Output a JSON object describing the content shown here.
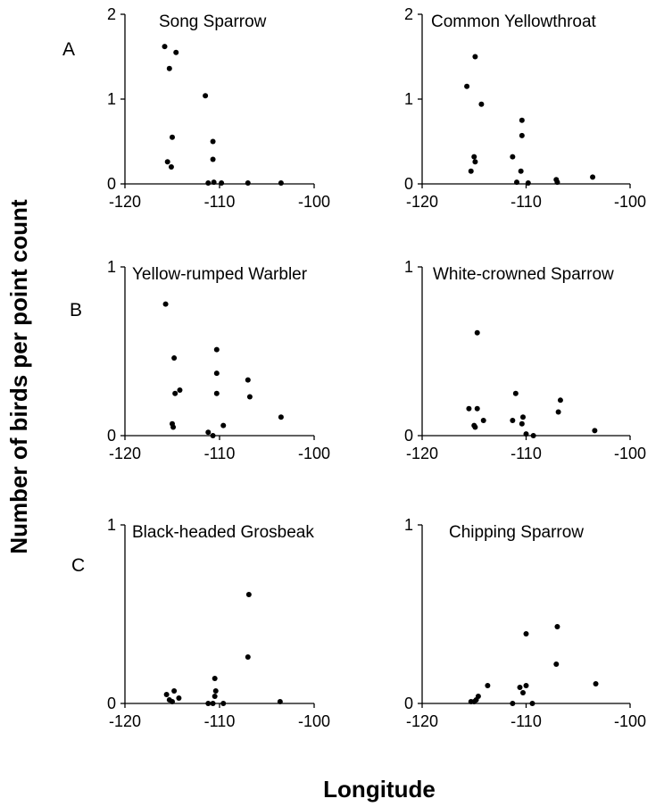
{
  "figure": {
    "ylabel": "Number of birds per point count",
    "xlabel": "Longitude",
    "rows": [
      "A",
      "B",
      "C"
    ]
  },
  "chart_data": [
    {
      "type": "scatter",
      "row": "A",
      "title": "Song Sparrow",
      "xlim": [
        -120,
        -100
      ],
      "ylim": [
        0,
        2
      ],
      "xticks": [
        -120,
        -110,
        -100
      ],
      "yticks": [
        0,
        1,
        2
      ],
      "points": [
        {
          "x": -115.8,
          "y": 1.62
        },
        {
          "x": -114.6,
          "y": 1.55
        },
        {
          "x": -115.3,
          "y": 1.36
        },
        {
          "x": -111.5,
          "y": 1.04
        },
        {
          "x": -115.0,
          "y": 0.55
        },
        {
          "x": -110.7,
          "y": 0.5
        },
        {
          "x": -110.7,
          "y": 0.29
        },
        {
          "x": -115.5,
          "y": 0.26
        },
        {
          "x": -115.1,
          "y": 0.2
        },
        {
          "x": -111.2,
          "y": 0.01
        },
        {
          "x": -110.6,
          "y": 0.02
        },
        {
          "x": -109.8,
          "y": 0.01
        },
        {
          "x": -107.0,
          "y": 0.01
        },
        {
          "x": -103.5,
          "y": 0.01
        }
      ]
    },
    {
      "type": "scatter",
      "row": "A",
      "title": "Common Yellowthroat",
      "xlim": [
        -120,
        -100
      ],
      "ylim": [
        0,
        2
      ],
      "xticks": [
        -120,
        -110,
        -100
      ],
      "yticks": [
        0,
        1,
        2
      ],
      "points": [
        {
          "x": -114.9,
          "y": 1.5
        },
        {
          "x": -115.7,
          "y": 1.15
        },
        {
          "x": -114.3,
          "y": 0.94
        },
        {
          "x": -110.4,
          "y": 0.75
        },
        {
          "x": -110.4,
          "y": 0.57
        },
        {
          "x": -115.0,
          "y": 0.32
        },
        {
          "x": -111.3,
          "y": 0.32
        },
        {
          "x": -114.9,
          "y": 0.26
        },
        {
          "x": -115.3,
          "y": 0.15
        },
        {
          "x": -110.5,
          "y": 0.15
        },
        {
          "x": -110.9,
          "y": 0.02
        },
        {
          "x": -109.8,
          "y": 0.01
        },
        {
          "x": -107.1,
          "y": 0.05
        },
        {
          "x": -107.0,
          "y": 0.02
        },
        {
          "x": -103.6,
          "y": 0.08
        }
      ]
    },
    {
      "type": "scatter",
      "row": "B",
      "title": "Yellow-rumped Warbler",
      "xlim": [
        -120,
        -100
      ],
      "ylim": [
        0,
        1
      ],
      "xticks": [
        -120,
        -110,
        -100
      ],
      "yticks": [
        0,
        1
      ],
      "points": [
        {
          "x": -115.7,
          "y": 0.78
        },
        {
          "x": -110.3,
          "y": 0.51
        },
        {
          "x": -114.8,
          "y": 0.46
        },
        {
          "x": -110.3,
          "y": 0.37
        },
        {
          "x": -107.0,
          "y": 0.33
        },
        {
          "x": -114.2,
          "y": 0.27
        },
        {
          "x": -114.7,
          "y": 0.25
        },
        {
          "x": -110.3,
          "y": 0.25
        },
        {
          "x": -106.8,
          "y": 0.23
        },
        {
          "x": -103.5,
          "y": 0.11
        },
        {
          "x": -115.0,
          "y": 0.07
        },
        {
          "x": -114.9,
          "y": 0.05
        },
        {
          "x": -109.6,
          "y": 0.06
        },
        {
          "x": -111.2,
          "y": 0.02
        },
        {
          "x": -110.7,
          "y": 0.0
        }
      ]
    },
    {
      "type": "scatter",
      "row": "B",
      "title": "White-crowned Sparrow",
      "xlim": [
        -120,
        -100
      ],
      "ylim": [
        0,
        1
      ],
      "xticks": [
        -120,
        -110,
        -100
      ],
      "yticks": [
        0,
        1
      ],
      "points": [
        {
          "x": -114.7,
          "y": 0.61
        },
        {
          "x": -111.0,
          "y": 0.25
        },
        {
          "x": -106.7,
          "y": 0.21
        },
        {
          "x": -115.5,
          "y": 0.16
        },
        {
          "x": -114.7,
          "y": 0.16
        },
        {
          "x": -106.9,
          "y": 0.14
        },
        {
          "x": -110.3,
          "y": 0.11
        },
        {
          "x": -114.1,
          "y": 0.09
        },
        {
          "x": -111.3,
          "y": 0.09
        },
        {
          "x": -115.0,
          "y": 0.06
        },
        {
          "x": -114.9,
          "y": 0.05
        },
        {
          "x": -110.4,
          "y": 0.07
        },
        {
          "x": -103.4,
          "y": 0.03
        },
        {
          "x": -110.0,
          "y": 0.01
        },
        {
          "x": -109.3,
          "y": 0.0
        }
      ]
    },
    {
      "type": "scatter",
      "row": "C",
      "title": "Black-headed Grosbeak",
      "xlim": [
        -120,
        -100
      ],
      "ylim": [
        0,
        1
      ],
      "xticks": [
        -120,
        -110,
        -100
      ],
      "yticks": [
        0,
        1
      ],
      "points": [
        {
          "x": -106.9,
          "y": 0.61
        },
        {
          "x": -107.0,
          "y": 0.26
        },
        {
          "x": -110.5,
          "y": 0.14
        },
        {
          "x": -110.4,
          "y": 0.07
        },
        {
          "x": -114.8,
          "y": 0.07
        },
        {
          "x": -110.5,
          "y": 0.04
        },
        {
          "x": -115.6,
          "y": 0.05
        },
        {
          "x": -114.3,
          "y": 0.03
        },
        {
          "x": -115.3,
          "y": 0.02
        },
        {
          "x": -115.0,
          "y": 0.01
        },
        {
          "x": -111.2,
          "y": 0.0
        },
        {
          "x": -110.7,
          "y": 0.0
        },
        {
          "x": -109.6,
          "y": 0.0
        },
        {
          "x": -103.6,
          "y": 0.01
        }
      ]
    },
    {
      "type": "scatter",
      "row": "C",
      "title": "Chipping Sparrow",
      "xlim": [
        -120,
        -100
      ],
      "ylim": [
        0,
        1
      ],
      "xticks": [
        -120,
        -110,
        -100
      ],
      "yticks": [
        0,
        1
      ],
      "points": [
        {
          "x": -107.0,
          "y": 0.43
        },
        {
          "x": -110.0,
          "y": 0.39
        },
        {
          "x": -107.1,
          "y": 0.22
        },
        {
          "x": -103.3,
          "y": 0.11
        },
        {
          "x": -113.7,
          "y": 0.1
        },
        {
          "x": -110.0,
          "y": 0.1
        },
        {
          "x": -110.6,
          "y": 0.09
        },
        {
          "x": -110.3,
          "y": 0.06
        },
        {
          "x": -114.6,
          "y": 0.04
        },
        {
          "x": -114.8,
          "y": 0.02
        },
        {
          "x": -115.3,
          "y": 0.01
        },
        {
          "x": -115.0,
          "y": 0.01
        },
        {
          "x": -111.3,
          "y": 0.0
        },
        {
          "x": -109.4,
          "y": 0.0
        }
      ]
    }
  ]
}
